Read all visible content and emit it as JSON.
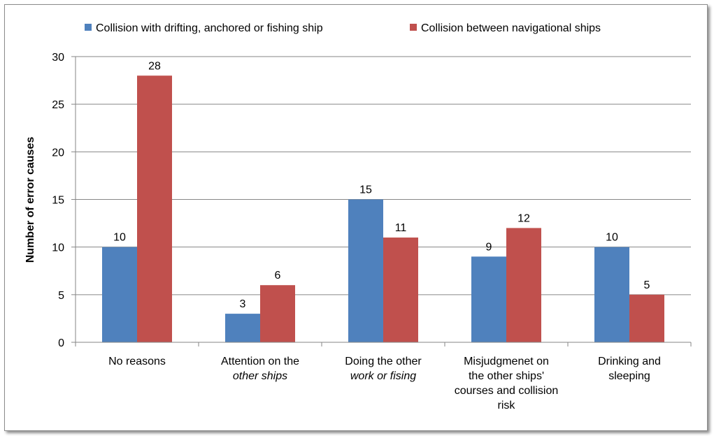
{
  "chart_data": {
    "type": "bar",
    "title": "",
    "xlabel": "",
    "ylabel": "Number of error causes",
    "ylim": [
      0,
      30
    ],
    "yticks": [
      0,
      5,
      10,
      15,
      20,
      25,
      30
    ],
    "grid": true,
    "legend_position": "top",
    "categories": [
      [
        "No reasons"
      ],
      [
        "Attention on the",
        "other ships"
      ],
      [
        "Doing the other",
        "work or fising"
      ],
      [
        "Misjudgmenet on",
        "the other ships'",
        "courses and collision",
        "risk"
      ],
      [
        "Drinking and",
        "sleeping"
      ]
    ],
    "series": [
      {
        "name": "Collision with drifting, anchored or fishing ship",
        "color": "#4f81bd",
        "values": [
          10,
          3,
          15,
          9,
          10
        ]
      },
      {
        "name": "Collision between navigational ships",
        "color": "#c0504d",
        "values": [
          28,
          6,
          11,
          12,
          5
        ]
      }
    ]
  }
}
